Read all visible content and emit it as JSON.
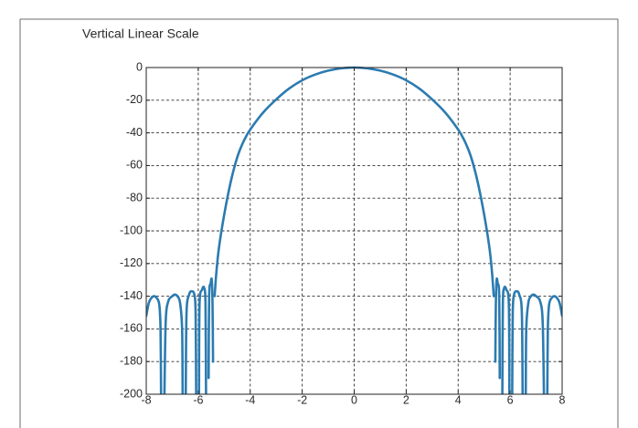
{
  "chart_data": {
    "type": "line",
    "title": "Vertical Linear Scale",
    "xlabel": "",
    "ylabel": "",
    "xlim": [
      -8,
      8
    ],
    "ylim": [
      -200,
      0
    ],
    "xticks": [
      -8,
      -6,
      -4,
      -2,
      0,
      2,
      4,
      6,
      8
    ],
    "yticks": [
      0,
      -20,
      -40,
      -60,
      -80,
      -100,
      -120,
      -140,
      -160,
      -180,
      -200
    ],
    "xtick_labels": [
      "-8",
      "-6",
      "-4",
      "-2",
      "0",
      "2",
      "4",
      "6",
      "8"
    ],
    "ytick_labels": [
      "0",
      "-20",
      "-40",
      "-60",
      "-80",
      "-100",
      "-120",
      "-140",
      "-160",
      "-180",
      "-200"
    ],
    "grid": true,
    "legend": "none",
    "series": [
      {
        "color": "#2b7bb0",
        "segments": [
          {
            "x": [
              -8.0,
              -7.9,
              -7.8,
              -7.7,
              -7.6,
              -7.5,
              -7.45,
              -7.43
            ],
            "y": [
              -152,
              -144,
              -141,
              -140,
              -141,
              -145,
              -160,
              -200
            ]
          },
          {
            "x": [
              -7.3,
              -7.25,
              -7.15,
              -7.0,
              -6.9,
              -6.8,
              -6.7,
              -6.62,
              -6.6
            ],
            "y": [
              -200,
              -155,
              -143,
              -140,
              -139,
              -140,
              -144,
              -160,
              -200
            ]
          },
          {
            "x": [
              -6.48,
              -6.45,
              -6.35,
              -6.25,
              -6.15,
              -6.1,
              -6.08
            ],
            "y": [
              -200,
              -150,
              -139,
              -137,
              -139,
              -150,
              -200
            ]
          },
          {
            "x": [
              -5.97,
              -5.95,
              -5.85,
              -5.77,
              -5.72,
              -5.7
            ],
            "y": [
              -200,
              -145,
              -136,
              -135,
              -145,
              -200
            ]
          },
          {
            "x": [
              -5.6,
              -5.58,
              -5.52,
              -5.48,
              -5.45,
              -5.43
            ],
            "y": [
              -190,
              -140,
              -132,
              -130,
              -145,
              -180
            ]
          },
          {
            "x": [
              -5.37,
              -5.3,
              -5.2,
              -5.0,
              -4.75,
              -4.5,
              -4.25,
              -4.0,
              -3.5,
              -3.0,
              -2.5,
              -2.0,
              -1.5,
              -1.0,
              -0.5,
              0.0,
              0.5,
              1.0,
              1.5,
              2.0,
              2.5,
              3.0,
              3.5,
              4.0,
              4.25,
              4.5,
              4.75,
              5.0,
              5.2,
              5.3,
              5.37
            ],
            "y": [
              -140,
              -125,
              -110,
              -90,
              -70,
              -55,
              -45,
              -38,
              -27.5,
              -19.5,
              -12.8,
              -7.8,
              -4.3,
              -1.9,
              -0.5,
              0.0,
              -0.5,
              -1.9,
              -4.3,
              -7.8,
              -12.8,
              -19.5,
              -27.5,
              -38,
              -45,
              -55,
              -70,
              -90,
              -110,
              -125,
              -140
            ]
          },
          {
            "x": [
              5.43,
              5.45,
              5.48,
              5.52,
              5.58,
              5.6
            ],
            "y": [
              -180,
              -145,
              -130,
              -132,
              -140,
              -190
            ]
          },
          {
            "x": [
              5.7,
              5.72,
              5.77,
              5.85,
              5.95,
              5.97
            ],
            "y": [
              -200,
              -145,
              -135,
              -136,
              -145,
              -200
            ]
          },
          {
            "x": [
              6.08,
              6.1,
              6.15,
              6.25,
              6.35,
              6.45,
              6.48
            ],
            "y": [
              -200,
              -150,
              -139,
              -137,
              -139,
              -150,
              -200
            ]
          },
          {
            "x": [
              6.6,
              6.62,
              6.7,
              6.8,
              6.9,
              7.0,
              7.15,
              7.25,
              7.3
            ],
            "y": [
              -200,
              -160,
              -144,
              -140,
              -139,
              -140,
              -143,
              -155,
              -200
            ]
          },
          {
            "x": [
              7.43,
              7.45,
              7.5,
              7.6,
              7.7,
              7.8,
              7.9,
              8.0
            ],
            "y": [
              -200,
              -160,
              -145,
              -141,
              -140,
              -141,
              -144,
              -152
            ]
          }
        ]
      }
    ]
  }
}
